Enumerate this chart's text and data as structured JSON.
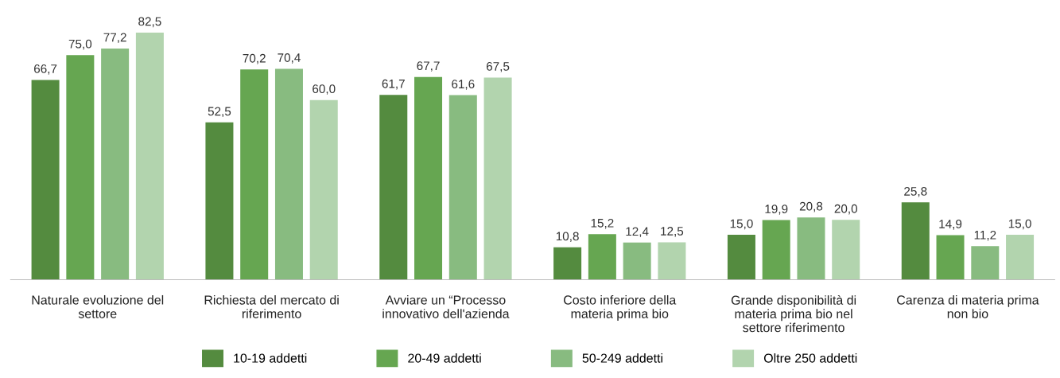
{
  "chart_data": {
    "type": "bar",
    "categories": [
      "Naturale evoluzione del\nsettore",
      "Richiesta del mercato di\nriferimento",
      "Avviare un “Processo\ninnovativo dell'azienda",
      "Costo inferiore della\nmateria prima bio",
      "Grande disponibilità di\nmateria prima bio nel\nsettore riferimento",
      "Carenza di materia prima\nnon bio"
    ],
    "series": [
      {
        "name": "10-19 addetti",
        "color": "#548b3f",
        "values": [
          66.7,
          52.5,
          61.7,
          10.8,
          15.0,
          25.8
        ],
        "value_labels": [
          "66,7",
          "52,5",
          "61,7",
          "10,8",
          "15,0",
          "25,8"
        ]
      },
      {
        "name": "20-49 addetti",
        "color": "#66a651",
        "values": [
          75.0,
          70.2,
          67.7,
          15.2,
          19.9,
          14.9
        ],
        "value_labels": [
          "75,0",
          "70,2",
          "67,7",
          "15,2",
          "19,9",
          "14,9"
        ]
      },
      {
        "name": "50-249 addetti",
        "color": "#88bb80",
        "values": [
          77.2,
          70.4,
          61.6,
          12.4,
          20.8,
          11.2
        ],
        "value_labels": [
          "77,2",
          "70,4",
          "61,6",
          "12,4",
          "20,8",
          "11,2"
        ]
      },
      {
        "name": "Oltre 250 addetti",
        "color": "#b2d4ae",
        "values": [
          82.5,
          60.0,
          67.5,
          12.5,
          20.0,
          15.0
        ],
        "value_labels": [
          "82,5",
          "60,0",
          "67,5",
          "12,5",
          "20,0",
          "15,0"
        ]
      }
    ],
    "legend": "bottom"
  }
}
